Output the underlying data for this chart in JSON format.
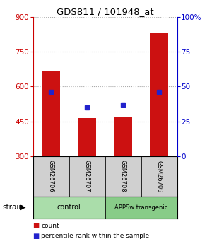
{
  "title": "GDS811 / 101948_at",
  "samples": [
    "GSM26706",
    "GSM26707",
    "GSM26708",
    "GSM26709"
  ],
  "counts": [
    670,
    465,
    470,
    830
  ],
  "percentiles": [
    46,
    35,
    37,
    46
  ],
  "ylim_left": [
    300,
    900
  ],
  "ylim_right": [
    0,
    100
  ],
  "yticks_left": [
    300,
    450,
    600,
    750,
    900
  ],
  "yticks_right": [
    0,
    25,
    50,
    75,
    100
  ],
  "groups": [
    {
      "label": "control",
      "samples": [
        0,
        1
      ],
      "color": "#aaddaa"
    },
    {
      "label": "APPSw transgenic",
      "samples": [
        2,
        3
      ],
      "color": "#88cc88"
    }
  ],
  "bar_color": "#cc1111",
  "dot_color": "#2222cc",
  "bar_width": 0.5,
  "strain_label": "strain",
  "legend_items": [
    {
      "color": "#cc1111",
      "label": "count"
    },
    {
      "color": "#2222cc",
      "label": "percentile rank within the sample"
    }
  ],
  "left_axis_color": "#cc0000",
  "right_axis_color": "#0000cc",
  "grid_color": "#aaaaaa",
  "bg_color": "#ffffff"
}
